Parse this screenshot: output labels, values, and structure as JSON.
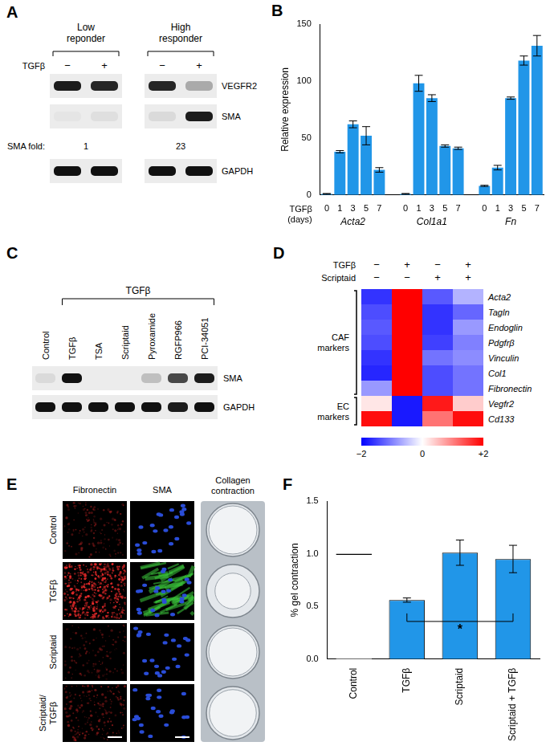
{
  "chart_data": [
    {
      "panel": "B",
      "type": "bar",
      "ylabel": "Relative expression",
      "xlabel": [
        "TGFβ",
        "(days)"
      ],
      "categories": [
        "0",
        "1",
        "3",
        "5",
        "7"
      ],
      "groups": [
        {
          "name": "Acta2",
          "values": [
            1,
            38,
            62,
            52,
            22
          ],
          "errors": [
            0.3,
            1,
            3,
            8,
            2
          ]
        },
        {
          "name": "Col1a1",
          "values": [
            1,
            98,
            85,
            43,
            41
          ],
          "errors": [
            0.3,
            7,
            3,
            1,
            1
          ]
        },
        {
          "name": "Fn",
          "values": [
            8,
            24,
            85,
            118,
            131
          ],
          "errors": [
            0.5,
            2,
            1,
            4,
            9
          ]
        }
      ],
      "color": "#2196e8",
      "ylim": [
        0,
        150
      ],
      "yticks": [
        0,
        50,
        100,
        150
      ],
      "grid": false
    },
    {
      "panel": "F",
      "type": "bar",
      "ylabel": "% gel contraction",
      "categories": [
        "Control",
        "TGFβ",
        "Scriptaid",
        "Scriptaid + TGFβ"
      ],
      "values": [
        1,
        0.56,
        1.01,
        0.95
      ],
      "errors": [
        0,
        0.02,
        0.12,
        0.13
      ],
      "colors": [
        "#ffffff",
        "#2196e8",
        "#2196e8",
        "#2196e8"
      ],
      "ylim": [
        0,
        1.5
      ],
      "yticks": [
        {
          "value": 0,
          "label": "0.0"
        },
        {
          "value": 0.5,
          "label": "0.5"
        },
        {
          "value": 1,
          "label": "1.0"
        },
        {
          "value": 1.5,
          "label": "1.5"
        }
      ],
      "grid": false,
      "annotations": [
        {
          "text": "*",
          "from": "TGFβ",
          "to": "Scriptaid + TGFβ"
        }
      ]
    }
  ],
  "blot_a": {
    "panel": "A",
    "treatment": "TGFβ",
    "signs": [
      "−",
      "+"
    ],
    "rows": [
      "VEGFR2",
      "SMA",
      "GAPDH"
    ],
    "fold_label": "SMA fold:",
    "blots": [
      {
        "title": "Low reponder",
        "intensity": [
          [
            0.95,
            0.9
          ],
          [
            0.03,
            0.06
          ],
          [
            1,
            1
          ]
        ],
        "fold": 1
      },
      {
        "title": "High responder",
        "intensity": [
          [
            0.9,
            0.3
          ],
          [
            0.08,
            0.95
          ],
          [
            1,
            1
          ]
        ],
        "fold": 23
      }
    ]
  },
  "blot_c": {
    "panel": "C",
    "lanes": [
      "Control",
      "TGFβ",
      "TSA",
      "Scriptaid",
      "Pyroxamide",
      "RGFP966",
      "PCI-34051"
    ],
    "bracket": {
      "label": "TGFβ",
      "under": [
        false,
        true,
        true,
        true,
        true,
        true,
        true
      ]
    },
    "rows": [
      {
        "name": "SMA",
        "intensity": [
          0.08,
          1,
          0,
          0,
          0.2,
          0.75,
          0.95
        ]
      },
      {
        "name": "GAPDH",
        "intensity": [
          1,
          1,
          1,
          1,
          1,
          0.95,
          1
        ]
      }
    ]
  },
  "heatmap_d": {
    "panel": "D",
    "conditions": [
      {
        "label": "TGFβ",
        "signs": [
          "−",
          "+",
          "−",
          "+"
        ]
      },
      {
        "label": "Scriptaid",
        "signs": [
          "−",
          "−",
          "+",
          "+"
        ]
      }
    ],
    "groups": [
      {
        "label": "CAF markers",
        "rows": [
          {
            "name": "Acta2",
            "values": [
              -1.6,
              2,
              -1.3,
              -0.6
            ]
          },
          {
            "name": "Tagln",
            "values": [
              -1.4,
              2,
              -1.6,
              -1.2
            ]
          },
          {
            "name": "Endoglin",
            "values": [
              -1.3,
              2,
              -1.6,
              -0.8
            ]
          },
          {
            "name": "Pdgfrβ",
            "values": [
              -1.4,
              2,
              -1.5,
              -1.0
            ]
          },
          {
            "name": "Vinculin",
            "values": [
              -1.6,
              2,
              -1.1,
              -0.9
            ]
          },
          {
            "name": "Col1",
            "values": [
              -1.7,
              2,
              -1.4,
              -1.1
            ]
          },
          {
            "name": "Fibronectin",
            "values": [
              -0.8,
              2,
              -1.4,
              -1.1
            ]
          }
        ]
      },
      {
        "label": "EC markers",
        "rows": [
          {
            "name": "Vegfr2",
            "values": [
              0.2,
              -1.8,
              1.8,
              0.4
            ]
          },
          {
            "name": "Cd133",
            "values": [
              1.9,
              -1.8,
              1.1,
              1.9
            ]
          }
        ]
      }
    ],
    "colorbar": {
      "clim": [
        -2,
        2
      ],
      "ticks": [
        {
          "value": -2,
          "label": "−2"
        },
        0,
        {
          "value": 2,
          "label": "+2"
        }
      ]
    }
  },
  "images_e": {
    "panel": "E",
    "columns": [
      "Fibronectin",
      "SMA",
      "Collagen contraction"
    ],
    "rows": [
      {
        "label": [
          "Control"
        ],
        "fibronectin": 0.25,
        "sma": 0,
        "gel_area": 1
      },
      {
        "label": [
          "TGFβ"
        ],
        "fibronectin": 1,
        "sma": 1,
        "gel_area": 0.55
      },
      {
        "label": [
          "Scriptaid"
        ],
        "fibronectin": 0.2,
        "sma": 0,
        "gel_area": 1
      },
      {
        "label": [
          "Scriptaid/",
          "TGFβ"
        ],
        "fibronectin": 0.35,
        "sma": 0,
        "gel_area": 0.95
      }
    ]
  }
}
